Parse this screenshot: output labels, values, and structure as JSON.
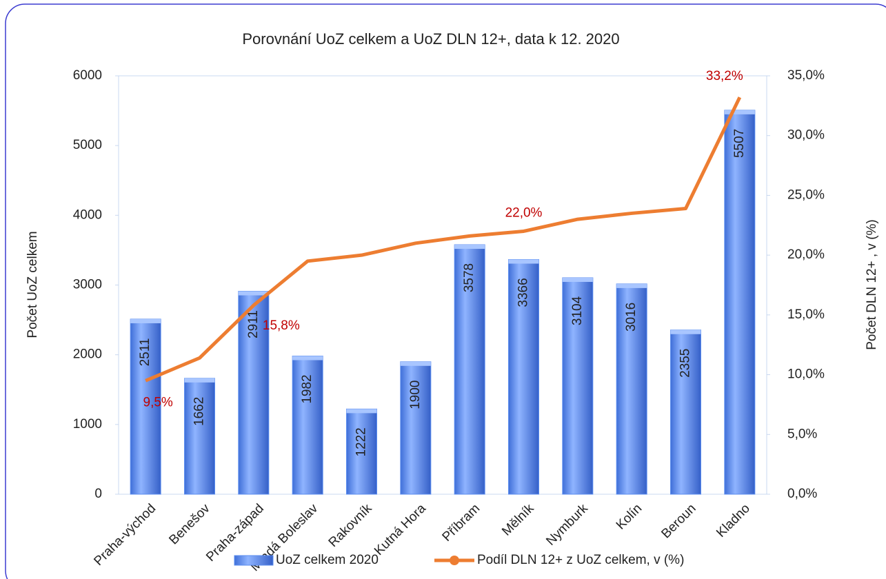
{
  "chart_data": {
    "type": "bar_line",
    "title": "Porovnání UoZ celkem a UoZ DLN 12+, data k 12. 2020",
    "y_label": "Počet UoZ celkem",
    "y2_label": "Počet DLN 12+ ,  v (%)",
    "categories": [
      "Praha-východ",
      "Benešov",
      "Praha-západ",
      "Mladá Boleslav",
      "Rakovník",
      "Kutná Hora",
      "Příbram",
      "Mělník",
      "Nymburk",
      "Kolín",
      "Beroun",
      "Kladno"
    ],
    "series": [
      {
        "name": "UoZ celkem 2020",
        "type": "bar",
        "color": "#5b8def",
        "values": [
          2511,
          1662,
          2911,
          1982,
          1222,
          1900,
          3578,
          3366,
          3104,
          3016,
          2355,
          5507
        ]
      },
      {
        "name": "Podíl DLN 12+ z UoZ celkem, v  (%)",
        "type": "line",
        "axis": "y2",
        "color": "#ed7d31",
        "values": [
          9.5,
          11.4,
          15.8,
          19.5,
          20.0,
          21.0,
          21.6,
          22.0,
          23.0,
          23.5,
          23.9,
          33.2
        ],
        "value_labels": [
          "9,5%",
          null,
          "15,8%",
          null,
          null,
          null,
          null,
          "22,0%",
          null,
          null,
          null,
          "33,2%"
        ]
      }
    ],
    "ylim": [
      0,
      6000
    ],
    "yticks": [
      0,
      1000,
      2000,
      3000,
      4000,
      5000,
      6000
    ],
    "y2lim": [
      0,
      35
    ],
    "y2ticks": [
      {
        "value": 0,
        "label": "0,0%"
      },
      {
        "value": 5,
        "label": "5,0%"
      },
      {
        "value": 10,
        "label": "10,0%"
      },
      {
        "value": 15,
        "label": "15,0%"
      },
      {
        "value": 20,
        "label": "20,0%"
      },
      {
        "value": 25,
        "label": "25,0%"
      },
      {
        "value": 30,
        "label": "30,0%"
      },
      {
        "value": 35,
        "label": "35,0%"
      }
    ],
    "legend": "bottom"
  }
}
